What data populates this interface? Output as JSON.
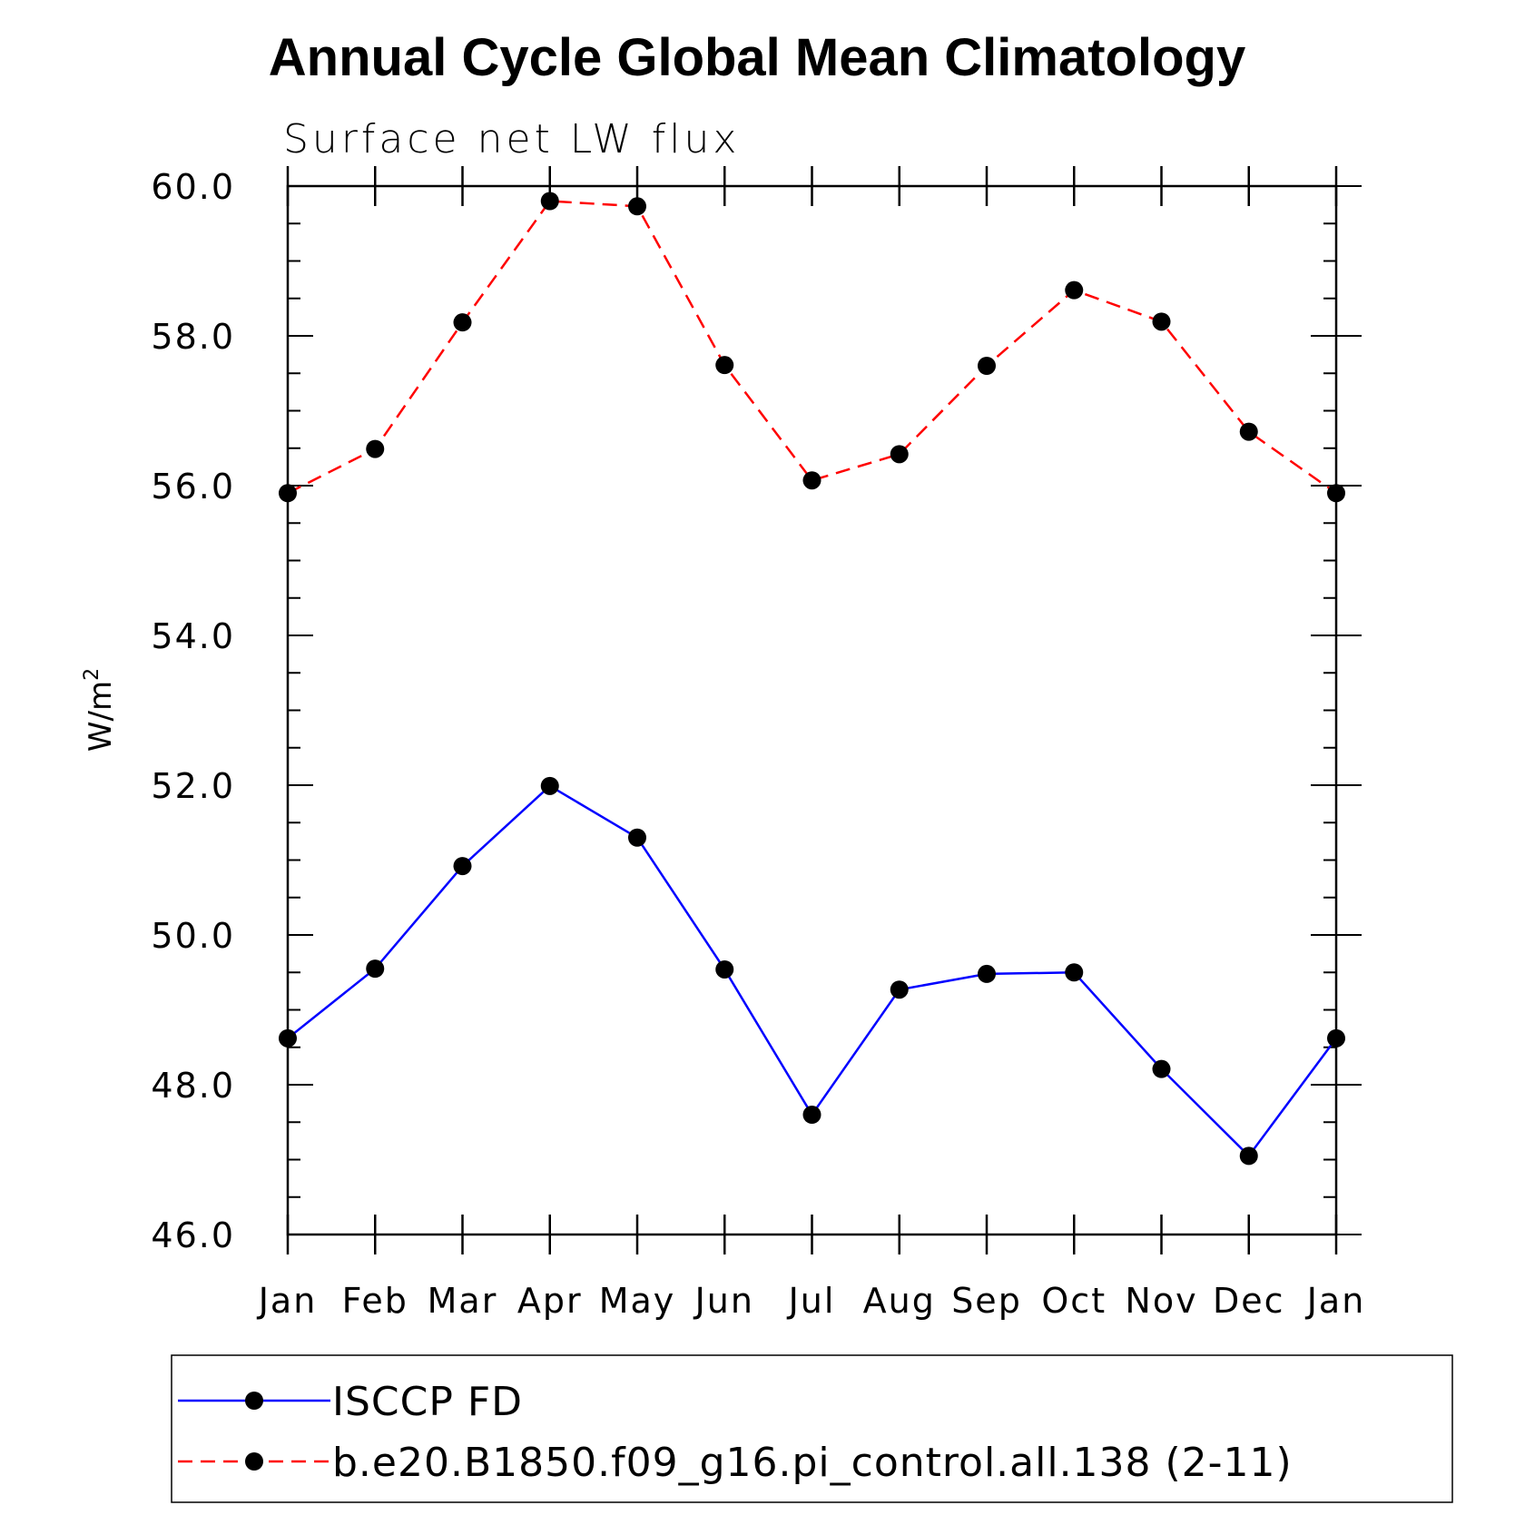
{
  "chart_data": {
    "type": "line",
    "title": "Annual Cycle Global Mean Climatology",
    "subtitle": "Surface net LW flux",
    "ylabel": "W/m",
    "ylabel_sup": "2",
    "xlabel": "",
    "categories": [
      "Jan",
      "Feb",
      "Mar",
      "Apr",
      "May",
      "Jun",
      "Jul",
      "Aug",
      "Sep",
      "Oct",
      "Nov",
      "Dec",
      "Jan"
    ],
    "ylim": [
      46.0,
      60.0
    ],
    "yticks": [
      "46.0",
      "48.0",
      "50.0",
      "52.0",
      "54.0",
      "56.0",
      "58.0",
      "60.0"
    ],
    "grid": false,
    "legend_position": "bottom",
    "series": [
      {
        "name": "ISCCP FD",
        "color": "#0000ff",
        "dash": "solid",
        "values": [
          48.62,
          49.55,
          50.92,
          51.99,
          51.3,
          49.54,
          47.6,
          49.27,
          49.48,
          49.5,
          48.21,
          47.05,
          48.62
        ]
      },
      {
        "name": "b.e20.B1850.f09_g16.pi_control.all.138 (2-11)",
        "color": "#ff0000",
        "dash": "dashed",
        "values": [
          55.9,
          56.49,
          58.18,
          59.8,
          59.73,
          57.61,
          56.07,
          56.42,
          57.6,
          58.61,
          58.19,
          56.72,
          55.9
        ]
      }
    ]
  }
}
